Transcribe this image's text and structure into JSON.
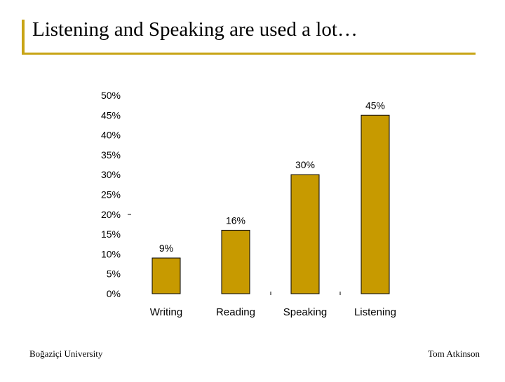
{
  "slide": {
    "title": "Listening and Speaking are used a lot…",
    "footer_left": "Boğaziçi University",
    "footer_right": "Tom Atkinson"
  },
  "colors": {
    "accent": "#c8a415",
    "bar": "#c79a00",
    "bar_edge": "#000000",
    "text": "#000000"
  },
  "chart_data": {
    "type": "bar",
    "title": "",
    "xlabel": "",
    "ylabel": "",
    "categories": [
      "Writing",
      "Reading",
      "Speaking",
      "Listening"
    ],
    "values": [
      9,
      16,
      30,
      45
    ],
    "value_labels": [
      "9%",
      "16%",
      "30%",
      "45%"
    ],
    "y_ticks": [
      "0%",
      "5%",
      "10%",
      "15%",
      "20%",
      "25%",
      "30%",
      "35%",
      "40%",
      "45%",
      "50%"
    ],
    "ylim": [
      0,
      50
    ],
    "grid": false,
    "legend": "none"
  }
}
